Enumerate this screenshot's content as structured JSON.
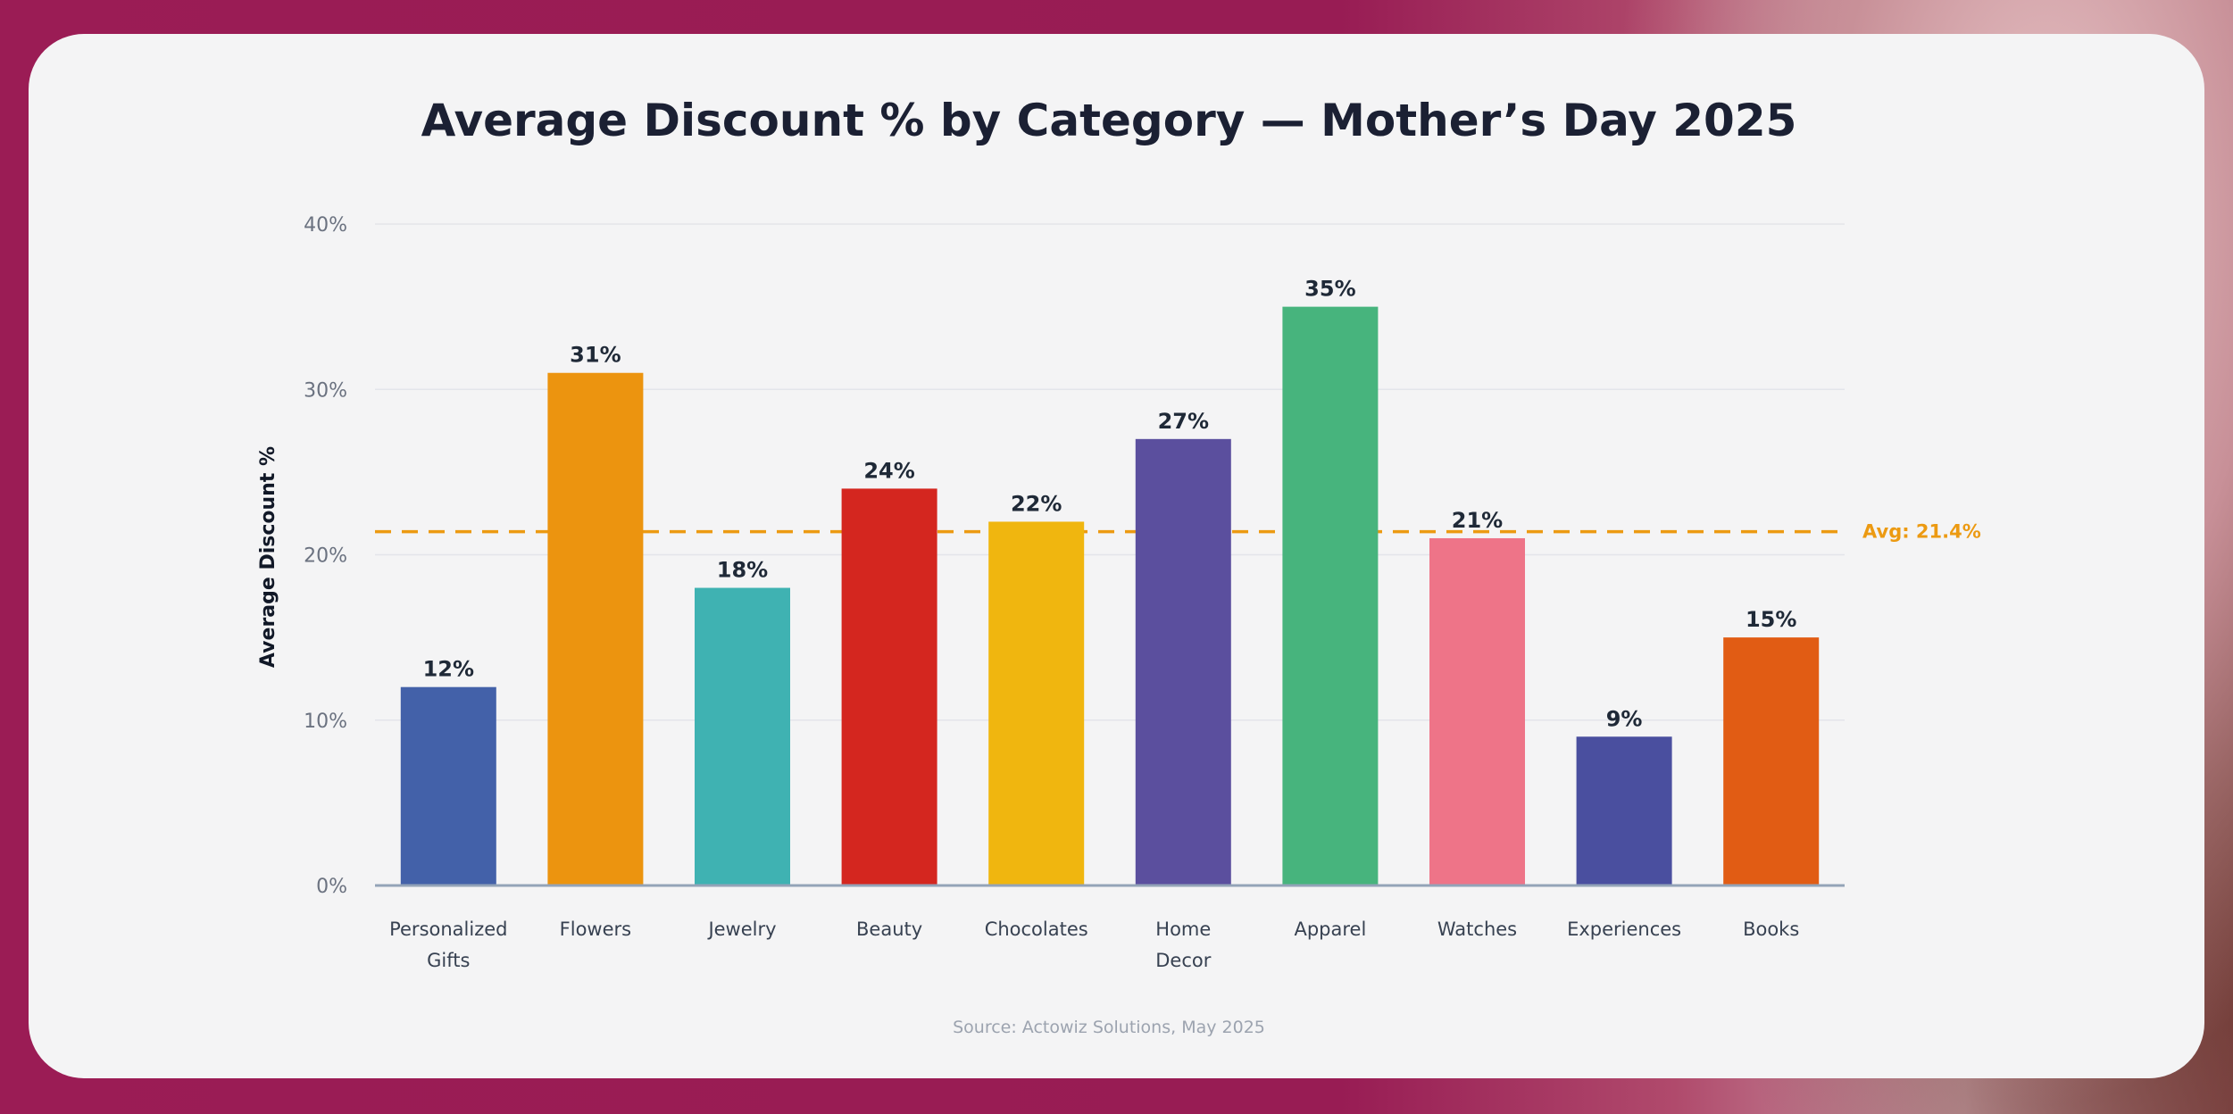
{
  "chart_data": {
    "type": "bar",
    "title": "Average Discount % by Category — Mother’s Day 2025",
    "ylabel": "Average Discount %",
    "xlabel": "",
    "ylim": [
      0,
      40
    ],
    "yticks": [
      "0%",
      "10%",
      "20%",
      "30%",
      "40%"
    ],
    "ytick_values": [
      0,
      10,
      20,
      30,
      40
    ],
    "grid": true,
    "categories": [
      [
        "Personalized",
        "Gifts"
      ],
      [
        "Flowers"
      ],
      [
        "Jewelry"
      ],
      [
        "Beauty"
      ],
      [
        "Chocolates"
      ],
      [
        "Home",
        "Decor"
      ],
      [
        "Apparel"
      ],
      [
        "Watches"
      ],
      [
        "Experiences"
      ],
      [
        "Books"
      ]
    ],
    "values": [
      12,
      31,
      18,
      24,
      22,
      27,
      35,
      21,
      9,
      15
    ],
    "value_labels": [
      "12%",
      "31%",
      "18%",
      "24%",
      "22%",
      "27%",
      "35%",
      "21%",
      "9%",
      "15%"
    ],
    "colors": [
      "#4361a9",
      "#ec940f",
      "#3fb2b2",
      "#d4261f",
      "#f0b60f",
      "#5b4f9e",
      "#47b47d",
      "#ee7488",
      "#4a4f9f",
      "#e15c14"
    ],
    "average": {
      "value": 21.4,
      "label": "Avg: 21.4%",
      "color": "#ec9a12"
    },
    "source": "Source: Actowiz Solutions, May 2025"
  }
}
